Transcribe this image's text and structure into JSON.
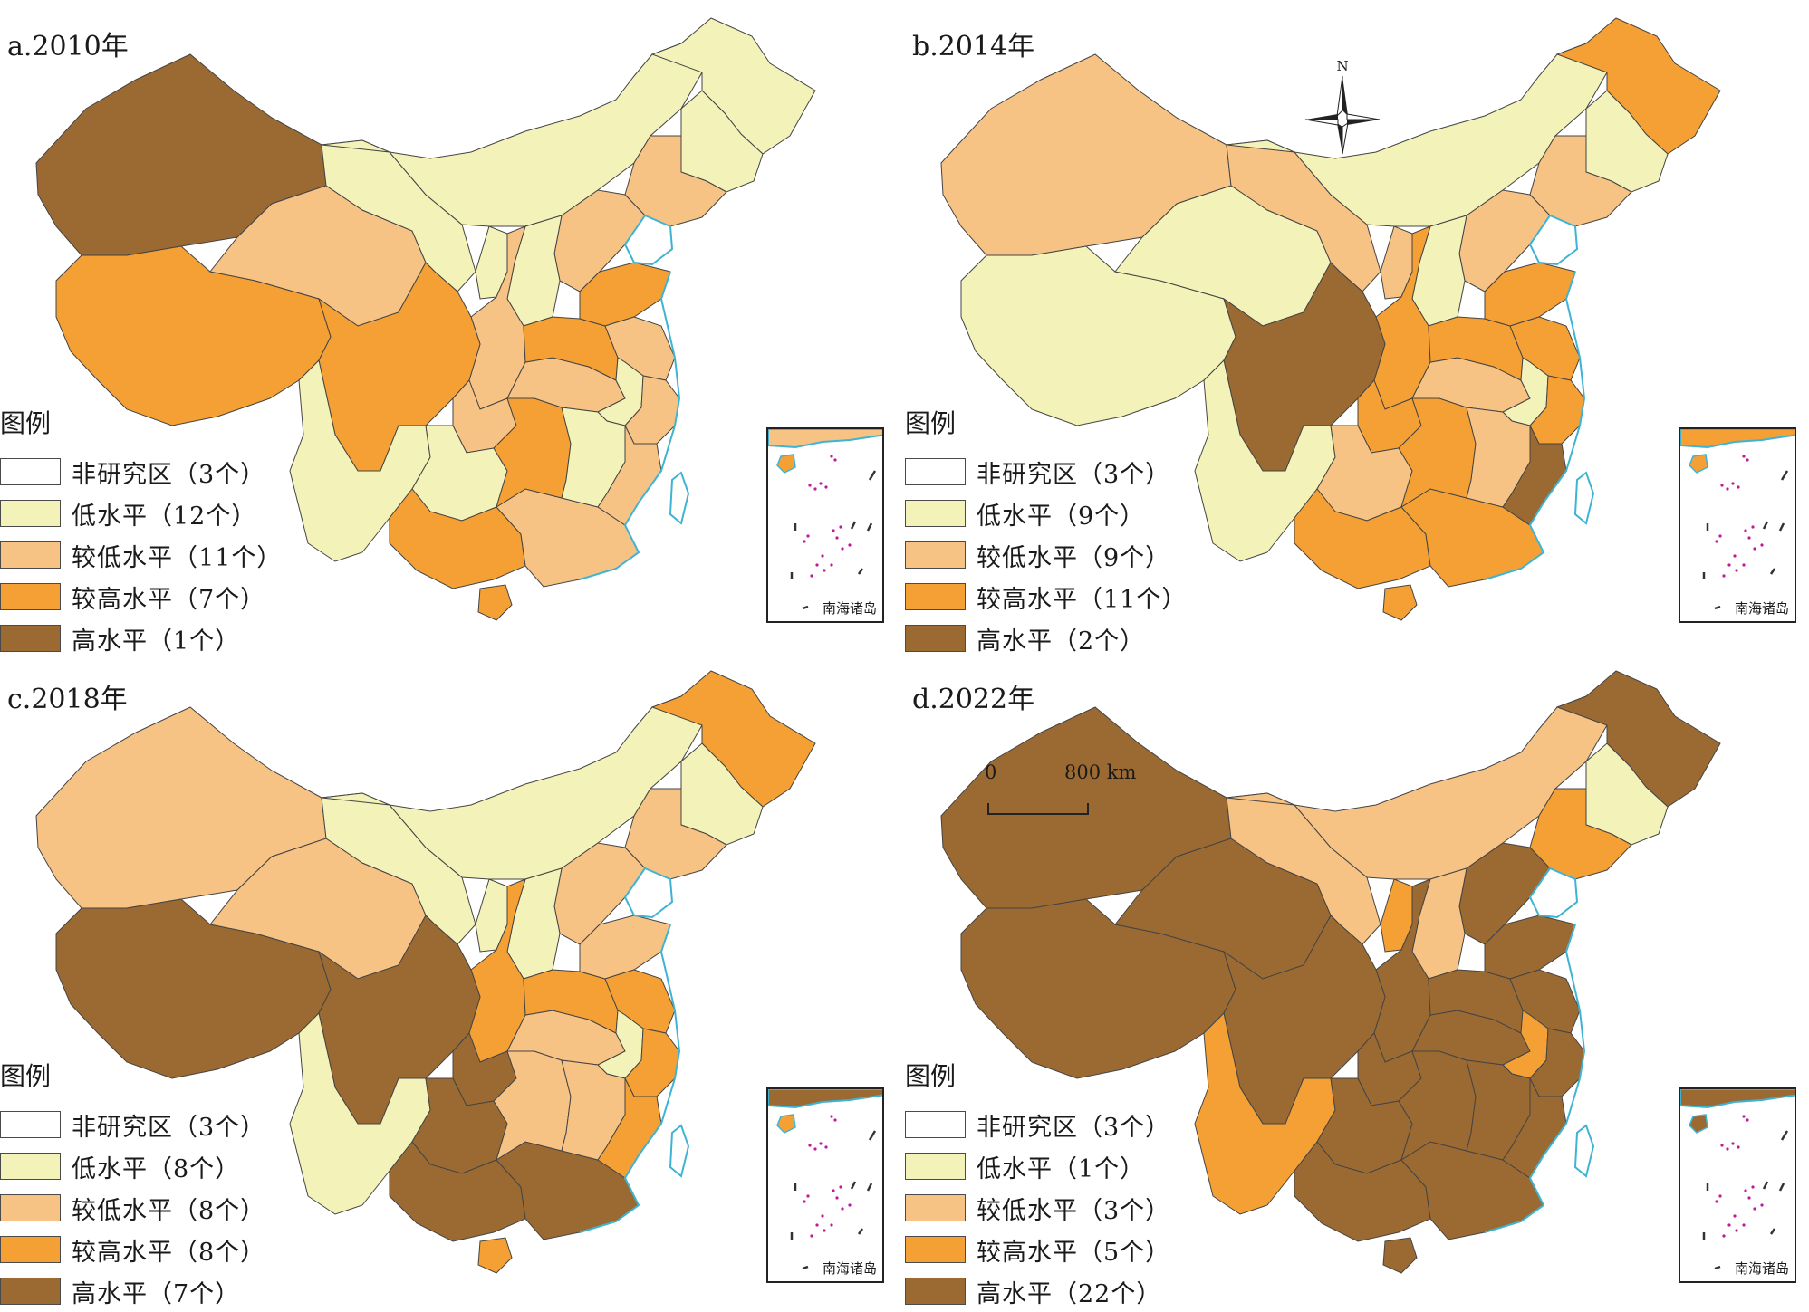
{
  "categories": [
    {
      "key": "none",
      "color": "#ffffff"
    },
    {
      "key": "low",
      "color": "#f3f2b8"
    },
    {
      "key": "lowmid",
      "color": "#f7c385"
    },
    {
      "key": "highmid",
      "color": "#f4a034"
    },
    {
      "key": "high",
      "color": "#9b6a32"
    }
  ],
  "legend_title": "图例",
  "panels": [
    {
      "title": "a.2010年",
      "legend": [
        "非研究区（3个）",
        "低水平（12个）",
        "较低水平（11个）",
        "较高水平（7个）",
        "高水平（1个）"
      ]
    },
    {
      "title": "b.2014年",
      "legend": [
        "非研究区（3个）",
        "低水平（9个）",
        "较低水平（9个）",
        "较高水平（11个）",
        "高水平（2个）"
      ]
    },
    {
      "title": "c.2018年",
      "legend": [
        "非研究区（3个）",
        "低水平（8个）",
        "较低水平（8个）",
        "较高水平（8个）",
        "高水平（7个）"
      ]
    },
    {
      "title": "d.2022年",
      "legend": [
        "非研究区（3个）",
        "低水平（1个）",
        "较低水平（3个）",
        "较高水平（5个）",
        "高水平（22个）"
      ]
    }
  ],
  "region_levels": {
    "2010": {
      "xinjiang": "high",
      "tibet": "highmid",
      "qinghai": "lowmid",
      "gansu": "low",
      "innermongolia": "low",
      "heilongjiang": "low",
      "jilin": "low",
      "liaoning": "lowmid",
      "hebei": "lowmid",
      "shanxi": "low",
      "shaanxi": "lowmid",
      "ningxia": "low",
      "sichuan": "highmid",
      "chongqing": "lowmid",
      "yunnan": "low",
      "guizhou": "low",
      "guangxi": "highmid",
      "guangdong": "lowmid",
      "hunan": "highmid",
      "hubei": "lowmid",
      "henan": "highmid",
      "shandong": "highmid",
      "jiangsu": "lowmid",
      "anhui": "low",
      "jiangxi": "low",
      "zhejiang": "lowmid",
      "fujian": "lowmid",
      "hainan": "highmid"
    },
    "2014": {
      "xinjiang": "lowmid",
      "tibet": "low",
      "qinghai": "low",
      "gansu": "lowmid",
      "innermongolia": "low",
      "heilongjiang": "highmid",
      "jilin": "low",
      "liaoning": "lowmid",
      "hebei": "lowmid",
      "shanxi": "low",
      "shaanxi": "highmid",
      "ningxia": "lowmid",
      "sichuan": "high",
      "chongqing": "highmid",
      "yunnan": "low",
      "guizhou": "lowmid",
      "guangxi": "highmid",
      "guangdong": "highmid",
      "hunan": "highmid",
      "hubei": "lowmid",
      "henan": "highmid",
      "shandong": "highmid",
      "jiangsu": "highmid",
      "anhui": "low",
      "jiangxi": "lowmid",
      "zhejiang": "highmid",
      "fujian": "high",
      "hainan": "highmid"
    },
    "2018": {
      "xinjiang": "lowmid",
      "tibet": "high",
      "qinghai": "lowmid",
      "gansu": "low",
      "innermongolia": "low",
      "heilongjiang": "highmid",
      "jilin": "low",
      "liaoning": "lowmid",
      "hebei": "lowmid",
      "shanxi": "low",
      "shaanxi": "highmid",
      "ningxia": "low",
      "sichuan": "high",
      "chongqing": "high",
      "yunnan": "low",
      "guizhou": "high",
      "guangxi": "high",
      "guangdong": "high",
      "hunan": "lowmid",
      "hubei": "lowmid",
      "henan": "highmid",
      "shandong": "lowmid",
      "jiangsu": "highmid",
      "anhui": "low",
      "jiangxi": "lowmid",
      "zhejiang": "highmid",
      "fujian": "highmid",
      "hainan": "highmid"
    },
    "2022": {
      "xinjiang": "high",
      "tibet": "high",
      "qinghai": "high",
      "gansu": "lowmid",
      "innermongolia": "lowmid",
      "heilongjiang": "high",
      "jilin": "low",
      "liaoning": "highmid",
      "hebei": "high",
      "shanxi": "lowmid",
      "shaanxi": "high",
      "ningxia": "highmid",
      "sichuan": "high",
      "chongqing": "high",
      "yunnan": "highmid",
      "guizhou": "high",
      "guangxi": "high",
      "guangdong": "high",
      "hunan": "high",
      "hubei": "high",
      "henan": "high",
      "shandong": "high",
      "jiangsu": "high",
      "anhui": "highmid",
      "jiangxi": "high",
      "zhejiang": "high",
      "fujian": "high",
      "hainan": "high"
    }
  },
  "inset_label": "南海诸岛",
  "north_label": "N",
  "scale": {
    "zero": "0",
    "max": "800 km"
  },
  "water_color": "#3fb3d3",
  "border_color": "#444444"
}
